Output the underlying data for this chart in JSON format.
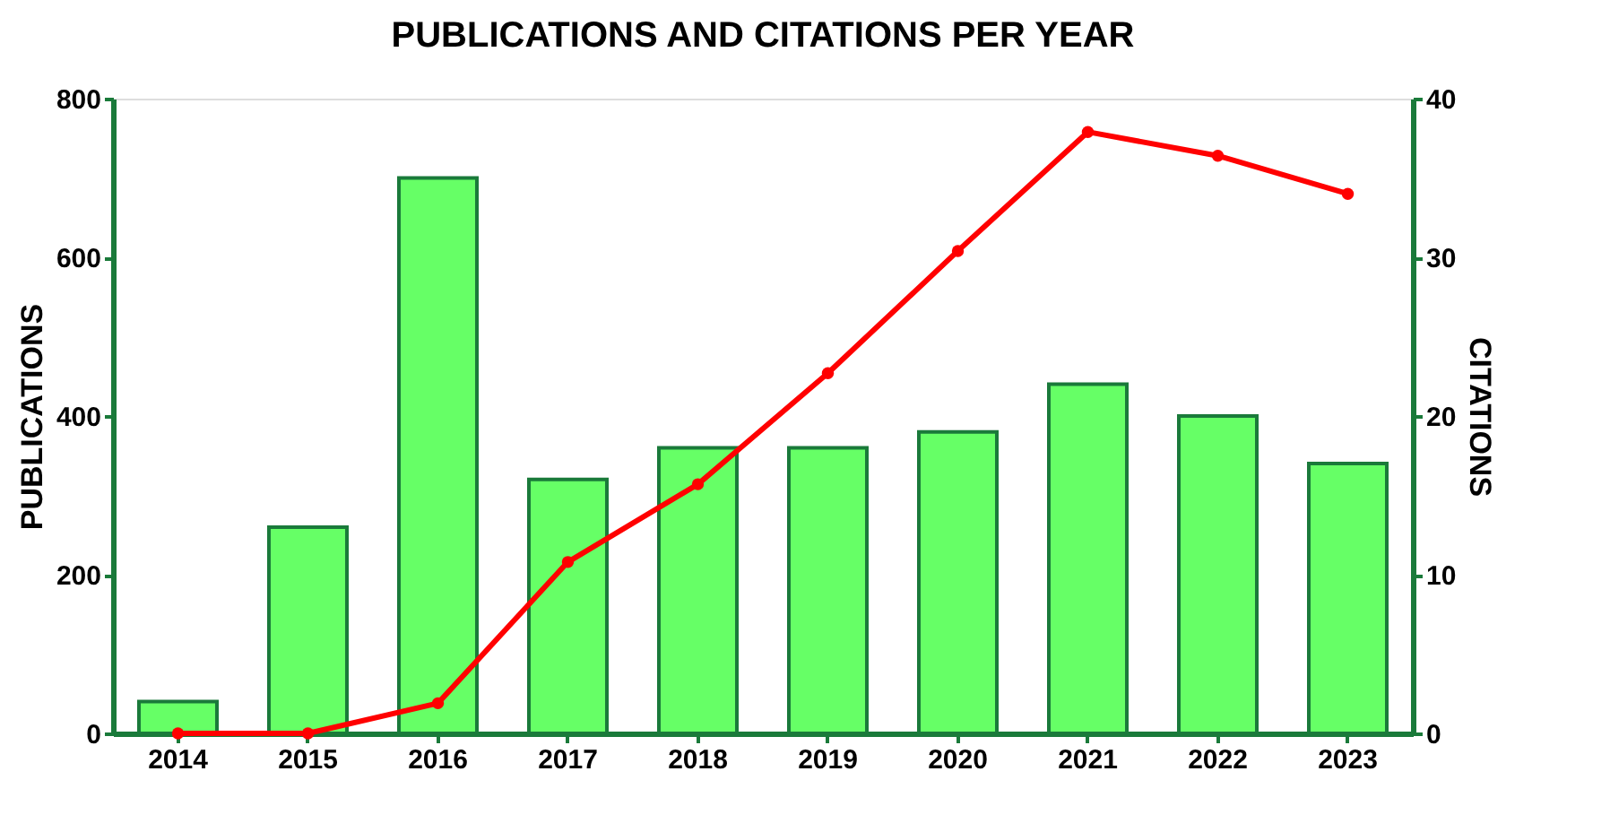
{
  "chart_data": {
    "type": "bar",
    "title": "PUBLICATIONS AND CITATIONS PER YEAR",
    "categories": [
      "2014",
      "2015",
      "2016",
      "2017",
      "2018",
      "2019",
      "2020",
      "2021",
      "2022",
      "2023"
    ],
    "series": [
      {
        "color": "#66ff66",
        "values": [
          40,
          260,
          700,
          320,
          360,
          360,
          380,
          440,
          400,
          340
        ]
      },
      {
        "type": "line",
        "axis": "y2",
        "color": "#ff0000",
        "marker": "circle",
        "values": [
          0,
          0,
          1.9,
          10.8,
          15.7,
          22.7,
          30.4,
          37.9,
          36.4,
          34
        ]
      }
    ],
    "ylabel": "PUBLICATIONS",
    "y2label": "CITATIONS",
    "ylim": [
      0,
      800
    ],
    "yticks": [
      0,
      200,
      400,
      600,
      800
    ],
    "y2lim": [
      0,
      40
    ],
    "y2ticks": [
      0,
      10,
      20,
      30,
      40
    ],
    "grid": false
  }
}
